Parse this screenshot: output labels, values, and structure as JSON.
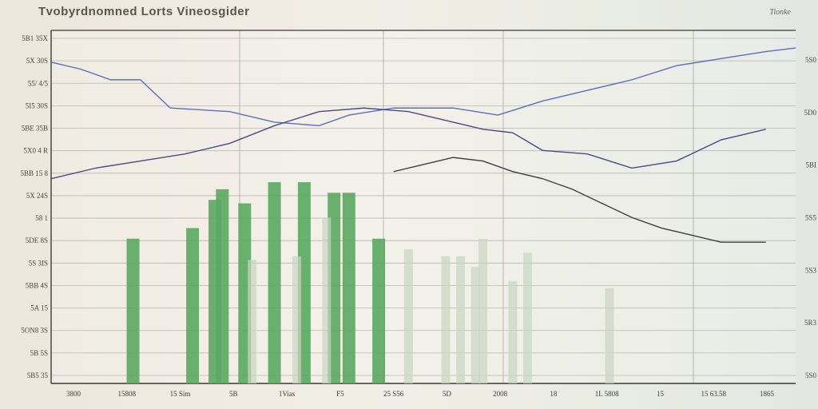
{
  "title": "Tvobyrdnomned Lorts Vineosgider",
  "corner_tag": "Tionke",
  "chart_data": {
    "type": "bar",
    "title": "Tvobyrdnomned Lorts Vineosgider",
    "xlabel": "",
    "ylabel": "",
    "grid": true,
    "x_ticks": [
      "3800",
      "15808",
      "15 Sim",
      "5B",
      "1Vias",
      "F5",
      "25 S56",
      "5D",
      "2008",
      "18",
      "1L 5808",
      "15",
      "15 63.58",
      "1865"
    ],
    "y_ticks_left": [
      "5B1 35X",
      "5X 30S",
      "55/ 4/5",
      "5I5 30S",
      "5BE 35B",
      "5X0 4 R",
      "5BB 15 8",
      "5X 24S",
      "58 1",
      "5DE 8S",
      "5S 3IS",
      "5BB 4S",
      "5A 15",
      "5ON8 3S",
      "5B 5S",
      "5B5 35"
    ],
    "y_ticks_right": [
      "5S0",
      "5D0",
      "5BI",
      "5S5",
      "5S3",
      "5R3",
      "5S0"
    ],
    "ylim": [
      0,
      100
    ],
    "series": [
      {
        "type": "bar",
        "color": "#5aa862",
        "x": [
          11,
          19,
          22,
          23,
          26,
          30,
          34,
          38,
          40,
          44
        ],
        "values": [
          41,
          44,
          52,
          55,
          51,
          57,
          57,
          54,
          54,
          41
        ]
      },
      {
        "type": "bar",
        "color": "#c9d6bf",
        "x": [
          27,
          33,
          37,
          48,
          53,
          55,
          57,
          58,
          62,
          64,
          75
        ],
        "values": [
          35,
          36,
          47,
          38,
          36,
          36,
          33,
          41,
          29,
          37,
          27
        ]
      },
      {
        "type": "line",
        "color": "#5b6ec2",
        "x": [
          0,
          4,
          8,
          12,
          16,
          24,
          30,
          36,
          40,
          46,
          54,
          60,
          66,
          72,
          78,
          84,
          90,
          96,
          100
        ],
        "values": [
          91,
          89,
          86,
          86,
          78,
          77,
          74,
          73,
          76,
          78,
          78,
          76,
          80,
          83,
          86,
          90,
          92,
          94,
          95
        ]
      },
      {
        "type": "line",
        "color": "#4a4a8a",
        "x": [
          0,
          6,
          12,
          18,
          24,
          30,
          36,
          42,
          48,
          54,
          58,
          62,
          66,
          72,
          78,
          84,
          90,
          96
        ],
        "values": [
          58,
          61,
          63,
          65,
          68,
          73,
          77,
          78,
          77,
          74,
          72,
          71,
          66,
          65,
          61,
          63,
          69,
          72
        ]
      },
      {
        "type": "line",
        "color": "#3e3e3e",
        "x": [
          46,
          50,
          54,
          58,
          62,
          66,
          70,
          74,
          78,
          82,
          86,
          90,
          96
        ],
        "values": [
          60,
          62,
          64,
          63,
          60,
          58,
          55,
          51,
          47,
          44,
          42,
          40,
          40
        ]
      }
    ]
  }
}
